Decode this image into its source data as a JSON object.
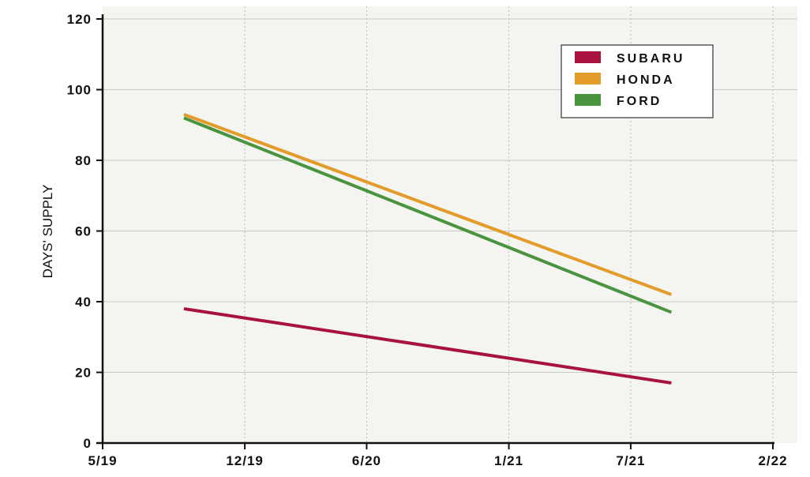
{
  "chart_data": {
    "type": "line",
    "title": "",
    "xlabel": "",
    "ylabel": "DAYS' SUPPLY",
    "x_ticks": [
      "5/19",
      "12/19",
      "6/20",
      "1/21",
      "7/21",
      "2/22"
    ],
    "y_ticks": [
      0,
      20,
      40,
      60,
      80,
      100,
      120
    ],
    "ylim": [
      0,
      120
    ],
    "grid": true,
    "grid_style": "x dotted, y solid",
    "legend_position": "top-right",
    "background_color": "#f4f4f0",
    "series": [
      {
        "name": "SUBARU",
        "color": "#a8123f",
        "points": [
          {
            "x": "9/19",
            "y": 38
          },
          {
            "x": "9/21",
            "y": 17
          }
        ]
      },
      {
        "name": "HONDA",
        "color": "#e39b2a",
        "points": [
          {
            "x": "9/19",
            "y": 93
          },
          {
            "x": "9/21",
            "y": 42
          }
        ]
      },
      {
        "name": "FORD",
        "color": "#4a9440",
        "points": [
          {
            "x": "9/19",
            "y": 92
          },
          {
            "x": "9/21",
            "y": 37
          }
        ]
      }
    ]
  }
}
